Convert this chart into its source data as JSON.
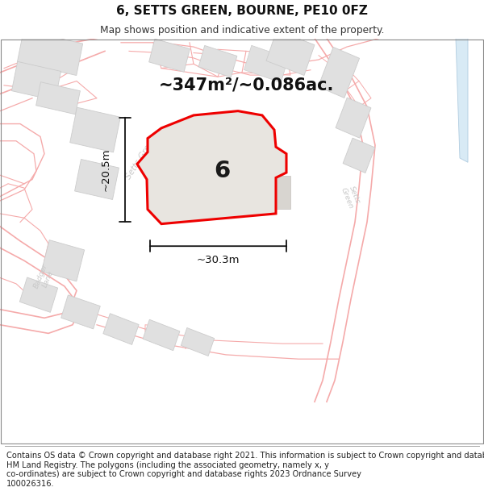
{
  "title": "6, SETTS GREEN, BOURNE, PE10 0FZ",
  "subtitle": "Map shows position and indicative extent of the property.",
  "footer": "Contains OS data © Crown copyright and database right 2021. This information is subject to Crown copyright and database rights 2023 and is reproduced with the permission of\nHM Land Registry. The polygons (including the associated geometry, namely x, y\nco-ordinates) are subject to Crown copyright and database rights 2023 Ordnance Survey\n100026316.",
  "area_text": "~347m²/~0.086ac.",
  "dim_width": "~30.3m",
  "dim_height": "~20.5m",
  "property_number": "6",
  "map_bg": "#ffffff",
  "road_line_color": "#f5aaaa",
  "building_fill": "#e0e0e0",
  "building_edge": "#cccccc",
  "plot_fill": "#e8e5e0",
  "plot_edge": "#ee0000",
  "dim_color": "#111111",
  "street_label_color": "#c8c8c8",
  "area_color": "#111111",
  "water_color": "#d8eaf5",
  "water_edge": "#b0cce0"
}
